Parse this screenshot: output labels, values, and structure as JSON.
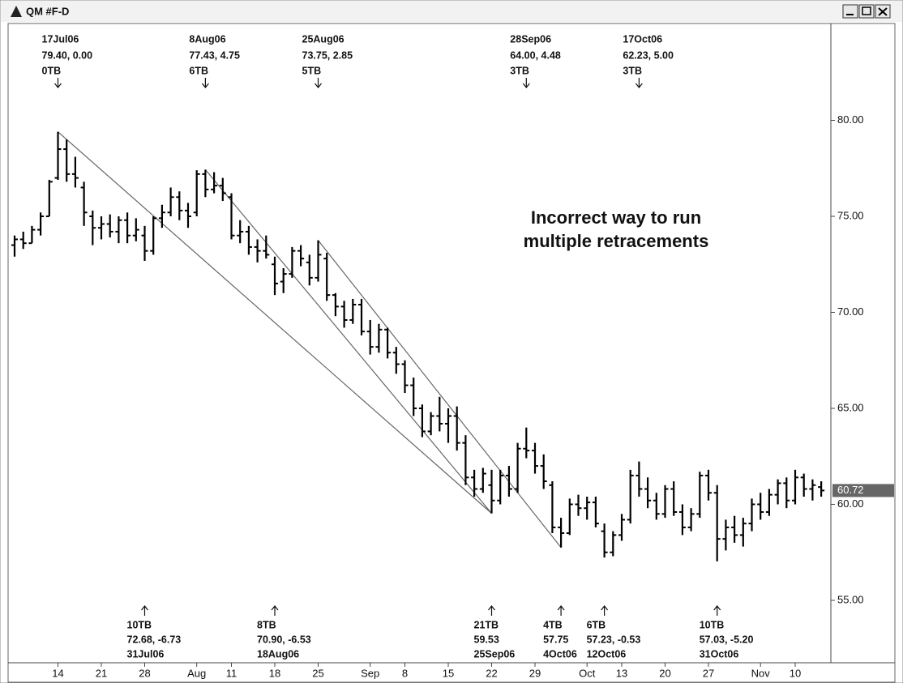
{
  "window_title": "QM #F-D",
  "chart_data": {
    "type": "ohlc",
    "color": "#000000",
    "ylim": [
      51.75,
      85
    ],
    "yticks": [
      {
        "value": 55,
        "label": "55.00"
      },
      {
        "value": 60,
        "label": "60.00"
      },
      {
        "value": 65,
        "label": "65.00"
      },
      {
        "value": 70,
        "label": "70.00"
      },
      {
        "value": 75,
        "label": "75.00"
      },
      {
        "value": 80,
        "label": "80.00"
      }
    ],
    "categories": [
      null,
      null,
      null,
      null,
      null,
      "14",
      null,
      null,
      null,
      null,
      "21",
      null,
      null,
      null,
      null,
      "28",
      null,
      null,
      null,
      null,
      null,
      "Aug",
      null,
      null,
      null,
      "11",
      null,
      null,
      null,
      null,
      "18",
      null,
      null,
      null,
      null,
      "25",
      null,
      null,
      null,
      null,
      null,
      "Sep",
      null,
      null,
      null,
      "8",
      null,
      null,
      null,
      null,
      "15",
      null,
      null,
      null,
      null,
      "22",
      null,
      null,
      null,
      null,
      "29",
      null,
      null,
      null,
      null,
      null,
      "Oct",
      null,
      null,
      null,
      "13",
      null,
      null,
      null,
      null,
      "20",
      null,
      null,
      null,
      null,
      "27",
      null,
      null,
      null,
      null,
      null,
      "Nov",
      null,
      null,
      null,
      "10",
      null,
      null,
      null
    ],
    "open": [
      73.5,
      73.8,
      73.6,
      74.3,
      75.0,
      77.0,
      78.5,
      77.2,
      76.5,
      75.0,
      74.4,
      74.6,
      74.2,
      74.8,
      74.0,
      74.0,
      73.2,
      74.9,
      75.2,
      76.0,
      75.3,
      75.2,
      77.2,
      76.4,
      76.6,
      76.0,
      74.0,
      74.2,
      73.4,
      73.2,
      72.5,
      71.6,
      72.0,
      73.2,
      72.6,
      71.8,
      72.8,
      70.9,
      70.3,
      69.6,
      70.4,
      69.0,
      68.2,
      69.1,
      67.9,
      67.3,
      66.2,
      65.0,
      63.8,
      64.6,
      64.2,
      64.6,
      63.2,
      61.4,
      60.8,
      61.0,
      60.2,
      61.5,
      60.8,
      62.9,
      62.8,
      62.0,
      61.0,
      58.8,
      58.5,
      60.0,
      59.8,
      60.1,
      58.6,
      57.5,
      58.4,
      59.2,
      61.5,
      60.8,
      60.2,
      59.5,
      60.8,
      59.6,
      58.8,
      59.5,
      61.5,
      60.6,
      58.2,
      58.8,
      58.4,
      59.0,
      60.0,
      59.6,
      60.5,
      61.1,
      60.2,
      61.4,
      60.8,
      60.9
    ],
    "high": [
      74.0,
      74.2,
      74.5,
      75.2,
      76.9,
      79.4,
      79.0,
      78.1,
      76.8,
      75.3,
      75.0,
      75.1,
      75.0,
      75.2,
      74.9,
      74.5,
      75.0,
      75.6,
      76.5,
      76.3,
      75.7,
      77.4,
      77.43,
      77.3,
      77.0,
      76.2,
      74.8,
      74.5,
      73.8,
      74.0,
      72.9,
      72.3,
      73.4,
      73.5,
      73.0,
      73.75,
      73.1,
      71.0,
      70.6,
      70.7,
      70.7,
      69.6,
      69.4,
      69.2,
      68.2,
      67.5,
      66.6,
      65.2,
      64.8,
      65.6,
      65.0,
      65.1,
      63.6,
      61.8,
      61.9,
      61.8,
      61.8,
      62.0,
      63.2,
      64.0,
      63.2,
      62.6,
      61.2,
      59.3,
      60.3,
      60.5,
      60.4,
      60.4,
      59.0,
      58.6,
      59.5,
      61.8,
      62.23,
      61.4,
      60.6,
      61.0,
      61.2,
      60.0,
      59.8,
      61.7,
      61.8,
      61.0,
      59.2,
      59.4,
      59.3,
      60.3,
      60.6,
      60.8,
      61.3,
      61.4,
      61.8,
      61.6,
      61.3,
      61.2
    ],
    "low": [
      72.9,
      73.3,
      73.6,
      74.0,
      75.0,
      76.9,
      76.8,
      76.5,
      74.5,
      73.5,
      73.8,
      73.9,
      73.6,
      73.6,
      73.7,
      72.68,
      73.0,
      74.4,
      75.0,
      74.8,
      74.4,
      75.0,
      76.0,
      76.2,
      75.8,
      73.8,
      73.6,
      73.0,
      72.6,
      72.8,
      70.9,
      71.0,
      71.8,
      72.4,
      71.4,
      71.6,
      70.6,
      69.8,
      69.2,
      69.4,
      68.8,
      67.8,
      67.9,
      67.6,
      66.8,
      65.8,
      64.6,
      63.5,
      63.6,
      63.8,
      63.2,
      62.8,
      61.0,
      60.4,
      60.6,
      59.53,
      60.0,
      60.4,
      60.6,
      62.4,
      61.6,
      60.8,
      58.5,
      57.75,
      58.4,
      59.4,
      59.2,
      58.8,
      57.23,
      57.3,
      58.1,
      59.0,
      60.4,
      59.8,
      59.2,
      59.3,
      59.4,
      58.4,
      58.6,
      59.3,
      60.2,
      57.03,
      57.6,
      58.0,
      57.8,
      58.6,
      59.2,
      59.4,
      60.0,
      59.8,
      60.0,
      60.4,
      60.2,
      60.4
    ],
    "close": [
      73.8,
      73.6,
      74.3,
      75.0,
      76.8,
      78.5,
      77.2,
      77.0,
      75.2,
      74.4,
      74.6,
      74.2,
      74.8,
      74.0,
      74.3,
      73.2,
      74.9,
      75.2,
      76.0,
      75.3,
      75.0,
      77.2,
      76.4,
      76.6,
      76.2,
      74.0,
      74.2,
      73.4,
      73.2,
      73.0,
      71.5,
      72.0,
      73.2,
      72.8,
      71.8,
      73.0,
      70.9,
      70.3,
      69.6,
      70.4,
      69.0,
      68.2,
      69.1,
      67.9,
      67.3,
      66.2,
      65.0,
      63.8,
      64.6,
      64.2,
      64.6,
      63.2,
      61.4,
      60.8,
      61.6,
      60.2,
      61.5,
      60.8,
      62.9,
      62.8,
      62.0,
      61.2,
      58.8,
      58.5,
      60.0,
      59.8,
      60.1,
      59.0,
      57.5,
      58.4,
      59.2,
      61.5,
      60.8,
      60.2,
      59.5,
      60.8,
      59.6,
      58.8,
      59.5,
      61.5,
      60.6,
      58.2,
      58.8,
      58.4,
      59.0,
      60.0,
      59.6,
      60.5,
      61.1,
      60.2,
      61.4,
      60.8,
      61.0,
      60.72
    ],
    "top_annotations": [
      {
        "date": "17Jul06",
        "price": 79.4,
        "label": "79.40, 0.00",
        "tb": "0TB"
      },
      {
        "date": "8Aug06",
        "price": 77.43,
        "label": "77.43, 4.75",
        "tb": "6TB"
      },
      {
        "date": "25Aug06",
        "price": 73.75,
        "label": "73.75, 2.85",
        "tb": "5TB"
      },
      {
        "date": "28Sep06",
        "price": 64.0,
        "label": "64.00, 4.48",
        "tb": "3TB"
      },
      {
        "date": "17Oct06",
        "price": 62.23,
        "label": "62.23, 5.00",
        "tb": "3TB"
      }
    ],
    "bottom_annotations": [
      {
        "tb": "10TB",
        "price": 72.68,
        "label": "72.68, -6.73",
        "date": "31Jul06"
      },
      {
        "tb": "8TB",
        "price": 70.9,
        "label": "70.90, -6.53",
        "date": "18Aug06"
      },
      {
        "tb": "21TB",
        "price": 59.53,
        "label": "59.53",
        "date": "25Sep06"
      },
      {
        "tb": "4TB",
        "price": 57.75,
        "label": "57.75",
        "date": "4Oct06"
      },
      {
        "tb": "6TB",
        "price": 57.23,
        "label": "57.23, -0.53",
        "date": "12Oct06"
      },
      {
        "tb": "10TB",
        "price": 57.03,
        "label": "57.03, -5.20",
        "date": "31Oct06"
      }
    ],
    "annotation": [
      "Incorrect way to run",
      "multiple retracements"
    ]
  }
}
